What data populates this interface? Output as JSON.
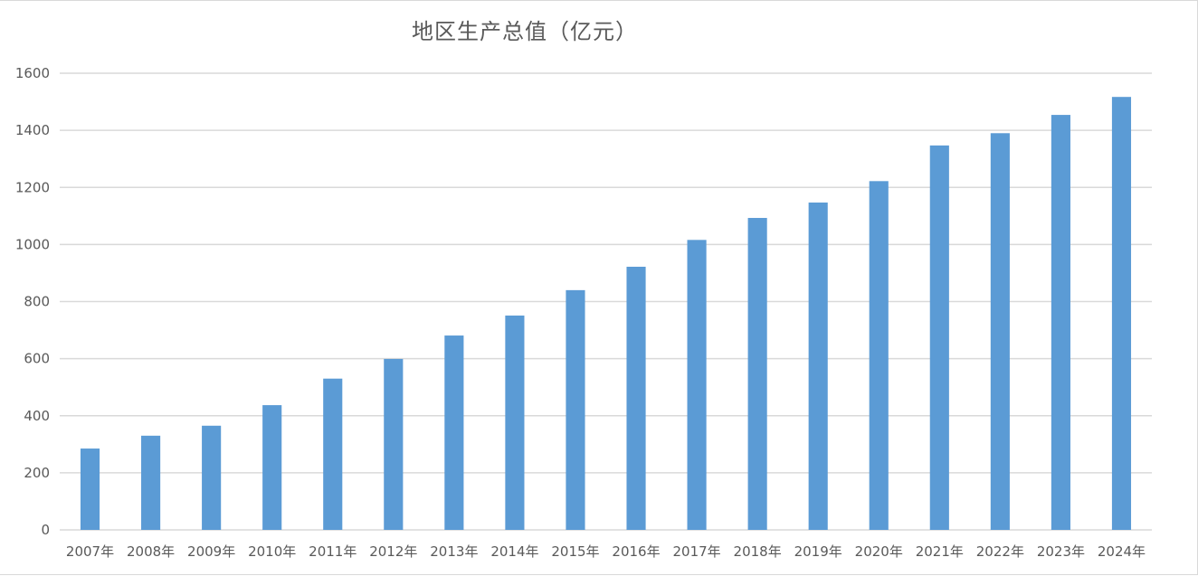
{
  "chart_data": {
    "type": "bar",
    "title": "地区生产总值（亿元）",
    "xlabel": "",
    "ylabel": "",
    "categories": [
      "2007年",
      "2008年",
      "2009年",
      "2010年",
      "2011年",
      "2012年",
      "2013年",
      "2014年",
      "2015年",
      "2016年",
      "2017年",
      "2018年",
      "2019年",
      "2020年",
      "2021年",
      "2022年",
      "2023年",
      "2024年"
    ],
    "values": [
      285,
      330,
      365,
      437,
      530,
      599,
      681,
      751,
      840,
      922,
      1016,
      1093,
      1147,
      1222,
      1347,
      1390,
      1454,
      1517
    ],
    "ylim": [
      0,
      1600
    ],
    "yticks": [
      0,
      200,
      400,
      600,
      800,
      1000,
      1200,
      1400,
      1600
    ],
    "grid": true,
    "legend": "none",
    "colors": {
      "bar": "#5b9bd5",
      "grid": "#d9d9d9",
      "axis": "#d9d9d9",
      "text": "#595959"
    }
  }
}
